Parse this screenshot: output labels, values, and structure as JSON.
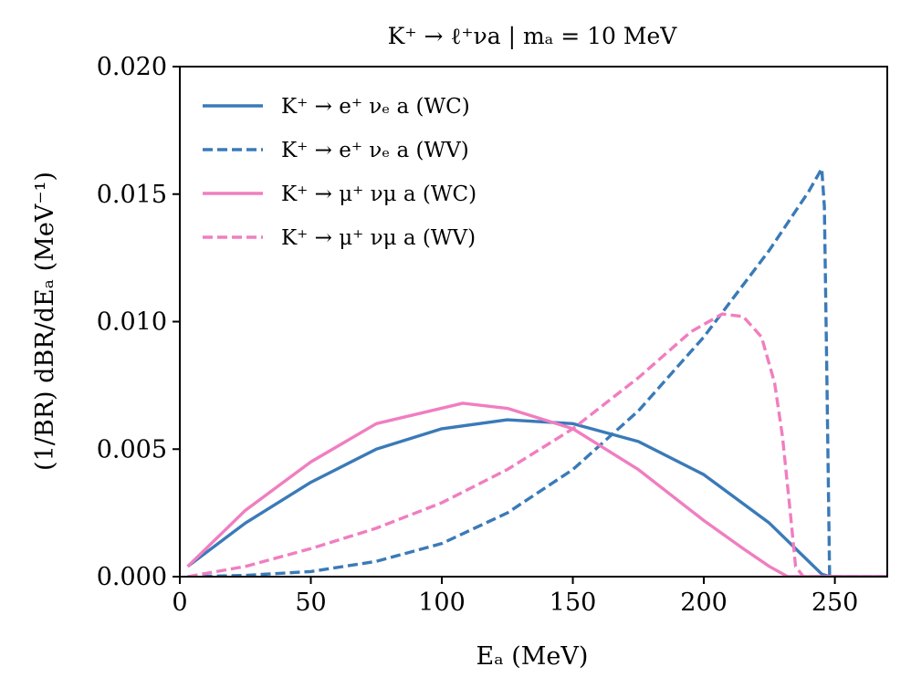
{
  "chart_data": {
    "type": "line",
    "title": "K⁺ → ℓ⁺νa | mₐ = 10 MeV",
    "xlabel": "Eₐ (MeV)",
    "ylabel": "(1/BR) dBR/dEₐ (MeV⁻¹)",
    "xlim": [
      0,
      270
    ],
    "ylim": [
      0,
      0.02
    ],
    "x_ticks": [
      "0",
      "50",
      "100",
      "150",
      "200",
      "250"
    ],
    "y_ticks": [
      "0.000",
      "0.005",
      "0.010",
      "0.015",
      "0.020"
    ],
    "grid": false,
    "legend_position": "top-left",
    "series": [
      {
        "name": "K⁺ → e⁺ νₑ a (WC)",
        "color": "#3a7ab8",
        "dash": "solid",
        "x": [
          3,
          25,
          50,
          75,
          100,
          125,
          150,
          175,
          200,
          225,
          240,
          245,
          248,
          270
        ],
        "y": [
          0.0004,
          0.0021,
          0.0037,
          0.005,
          0.0058,
          0.00615,
          0.006,
          0.0053,
          0.004,
          0.0021,
          0.0006,
          0.0001,
          0.0,
          0.0
        ]
      },
      {
        "name": "K⁺ → e⁺ νₑ a (WV)",
        "color": "#3a7ab8",
        "dash": "dashed",
        "x": [
          3,
          25,
          50,
          75,
          100,
          125,
          150,
          175,
          200,
          225,
          240,
          245,
          246,
          247,
          248,
          270
        ],
        "y": [
          0.0,
          5e-05,
          0.0002,
          0.0006,
          0.0013,
          0.0025,
          0.0042,
          0.0065,
          0.0094,
          0.0128,
          0.0151,
          0.016,
          0.0145,
          0.0075,
          0.0,
          0.0
        ]
      },
      {
        "name": "K⁺ → μ⁺ νμ a (WC)",
        "color": "#f07ec0",
        "dash": "solid",
        "x": [
          3,
          25,
          50,
          75,
          108,
          125,
          150,
          175,
          200,
          215,
          225,
          232,
          270
        ],
        "y": [
          0.0004,
          0.0026,
          0.0045,
          0.006,
          0.0068,
          0.0066,
          0.0058,
          0.0042,
          0.0022,
          0.0011,
          0.0004,
          0.0,
          0.0
        ]
      },
      {
        "name": "K⁺ → μ⁺ νμ a (WV)",
        "color": "#f07ec0",
        "dash": "dashed",
        "x": [
          3,
          25,
          50,
          75,
          100,
          125,
          150,
          175,
          195,
          207,
          215,
          222,
          227,
          230,
          233,
          235,
          238,
          270
        ],
        "y": [
          0.0,
          0.0004,
          0.0011,
          0.0019,
          0.0029,
          0.0042,
          0.0058,
          0.0078,
          0.0096,
          0.0103,
          0.0102,
          0.0094,
          0.0076,
          0.0055,
          0.0025,
          0.0004,
          0.0,
          0.0
        ]
      }
    ]
  }
}
